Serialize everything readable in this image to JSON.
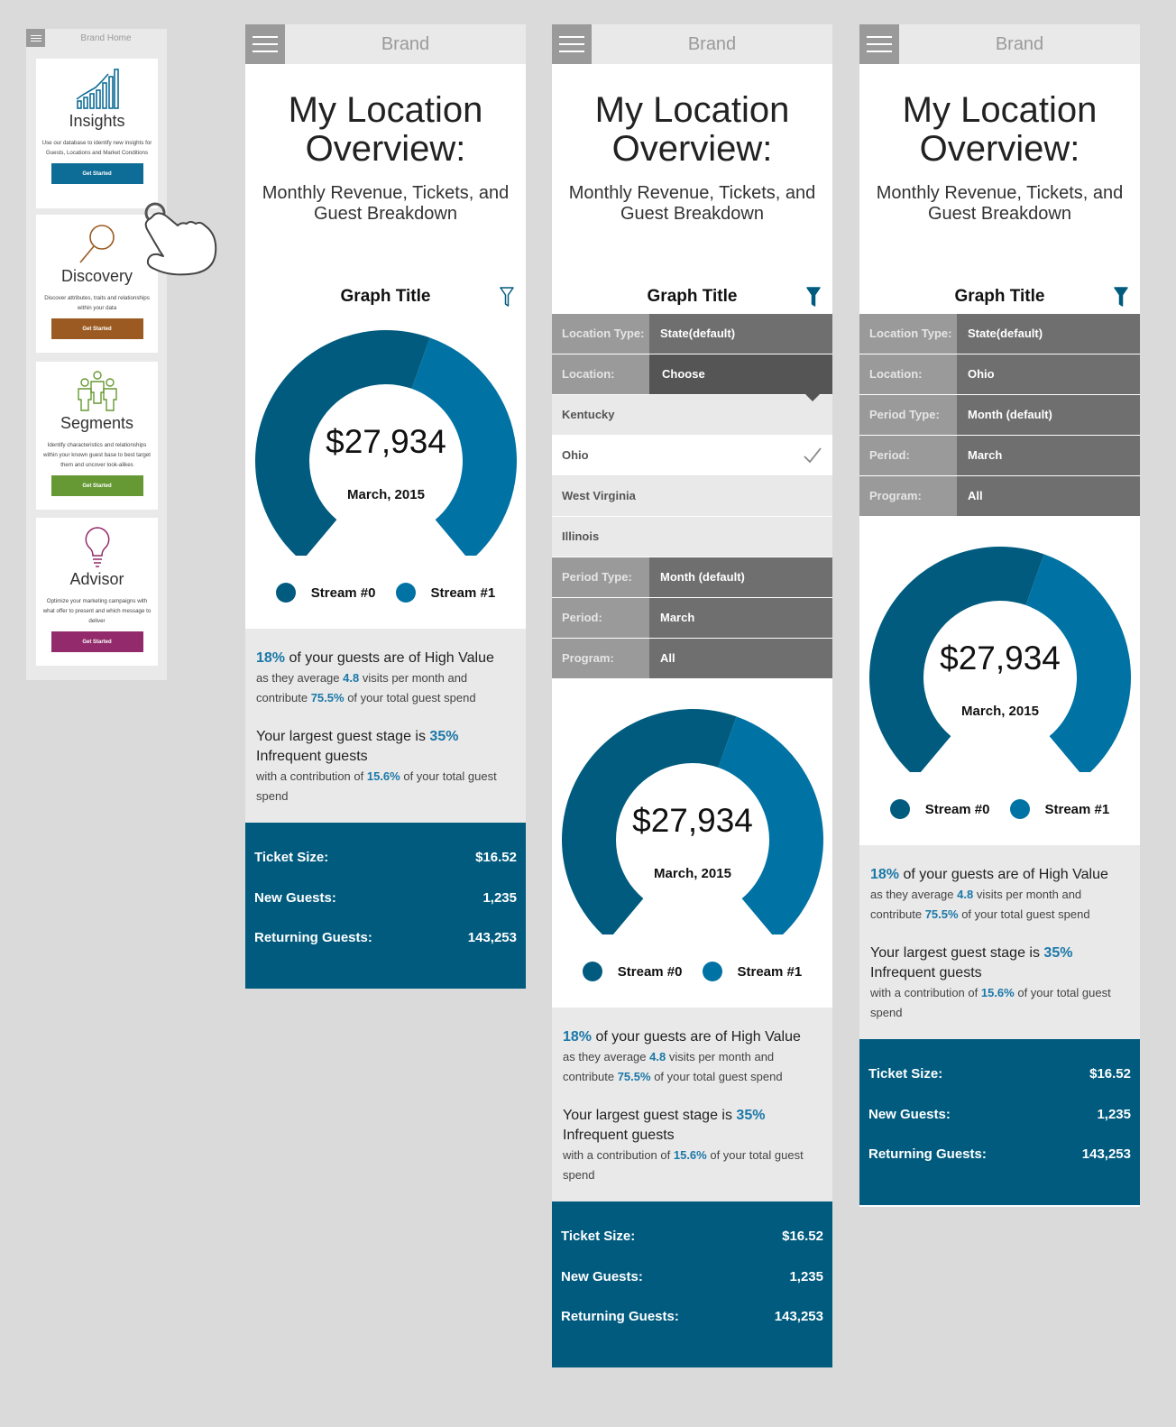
{
  "home": {
    "brand": "Brand Home",
    "cards": [
      {
        "title": "Insights",
        "desc": "Use our database to identify new insights for Guests, Locations and Market Conditions",
        "button": "Get Started",
        "color": "#0e6d97",
        "icon": "bar-chart-icon"
      },
      {
        "title": "Discovery",
        "desc": "Discover attributes, traits and relationships within your data",
        "button": "Get Started",
        "color": "#9a5a21",
        "icon": "magnifier-icon"
      },
      {
        "title": "Segments",
        "desc": "Identify characteristics and relationships within your known guest base to best target them and uncover look-alikes",
        "button": "Get Started",
        "color": "#669933",
        "icon": "people-icon"
      },
      {
        "title": "Advisor",
        "desc": "Optimize your marketing campaigns with what offer to present and which message to deliver",
        "button": "Get Started",
        "color": "#922a6b",
        "icon": "lightbulb-icon"
      }
    ]
  },
  "screen": {
    "brand": "Brand",
    "title_line1": "My Location",
    "title_line2": "Overview:",
    "subtitle_line1": "Monthly Revenue, Tickets, and",
    "subtitle_line2": "Guest Breakdown",
    "graph_title": "Graph Title"
  },
  "filters": {
    "location_type": {
      "label": "Location Type:",
      "value": "State(default)"
    },
    "location": {
      "label": "Location:",
      "value_choose": "Choose",
      "value_selected": "Ohio"
    },
    "options": [
      "Kentucky",
      "Ohio",
      "West Virginia",
      "Illinois"
    ],
    "period_type": {
      "label": "Period Type:",
      "value": "Month (default)"
    },
    "period": {
      "label": "Period:",
      "value": "March"
    },
    "program": {
      "label": "Program:",
      "value": "All"
    }
  },
  "chart_data": {
    "type": "pie",
    "center_value": "$27,934",
    "center_label": "March, 2015",
    "series": [
      {
        "name": "Stream #0",
        "value": 57,
        "color": "#005b7f"
      },
      {
        "name": "Stream #1",
        "value": 43,
        "color": "#0072a3"
      }
    ]
  },
  "stats": {
    "high_value_pct": "18%",
    "high_value_text": " of your guests are of High Value",
    "avg_prefix": "as they average ",
    "avg_visits": "4.8",
    "avg_suffix": " visits per month and",
    "contrib_prefix": "contribute ",
    "contrib_pct": "75.5%",
    "contrib_suffix": " of your total guest spend",
    "stage_prefix": "Your largest guest stage is ",
    "stage_pct": "35%",
    "stage_name": "Infrequent guests",
    "stage_contrib_prefix": "with a contribution of ",
    "stage_contrib_pct": "15.6%",
    "stage_contrib_suffix": " of your total guest",
    "stage_contrib_end": "spend"
  },
  "kpi": {
    "ticket_label": "Ticket Size:",
    "ticket_value": "$16.52",
    "new_label": "New Guests:",
    "new_value": "1,235",
    "returning_label": "Returning Guests:",
    "returning_value": "143,253"
  }
}
